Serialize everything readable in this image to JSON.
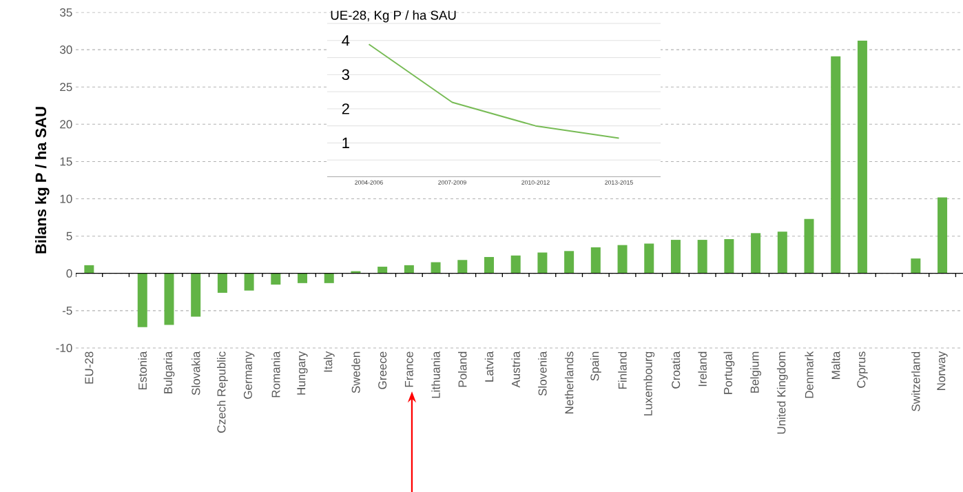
{
  "chart_data": [
    {
      "type": "bar",
      "ylabel": "Bilans kg P / ha SAU",
      "categories": [
        "EU-28",
        null,
        "Estonia",
        "Bulgaria",
        "Slovakia",
        "Czech Republic",
        "Germany",
        "Romania",
        "Hungary",
        "Italy",
        "Sweden",
        "Greece",
        "France",
        "Lithuania",
        "Poland",
        "Latvia",
        "Austria",
        "Slovenia",
        "Netherlands",
        "Spain",
        "Finland",
        "Luxembourg",
        "Croatia",
        "Ireland",
        "Portugal",
        "Belgium",
        "United Kingdom",
        "Denmark",
        "Malta",
        "Cyprus",
        null,
        "Switzerland",
        "Norway"
      ],
      "values": [
        1.1,
        null,
        -7.2,
        -6.9,
        -5.8,
        -2.6,
        -2.3,
        -1.5,
        -1.3,
        -1.3,
        0.3,
        0.9,
        1.1,
        1.5,
        1.8,
        2.2,
        2.4,
        2.8,
        3.0,
        3.5,
        3.8,
        4.0,
        4.5,
        4.5,
        4.6,
        5.4,
        5.6,
        7.3,
        29.1,
        31.2,
        null,
        2.0,
        10.2
      ],
      "color": "#62b446",
      "ylim": [
        -10,
        35
      ],
      "yticks": [
        -10,
        -5,
        0,
        5,
        10,
        15,
        20,
        25,
        30,
        35
      ],
      "grid": "y"
    },
    {
      "type": "line",
      "title": "UE-28, Kg P / ha SAU",
      "categories": [
        "2004-2006",
        "2007-2009",
        "2010-2012",
        "2013-2015"
      ],
      "values": [
        3.89,
        2.19,
        1.5,
        1.14
      ],
      "color": "#77bb55",
      "ylim": [
        0,
        4.5
      ],
      "yticks": [
        {
          "value": 0.5,
          "label": null
        },
        1,
        {
          "value": 1.5,
          "label": null
        },
        2,
        {
          "value": 2.5,
          "label": null
        },
        3,
        {
          "value": 3.5,
          "label": null
        },
        4,
        {
          "value": 4.5,
          "label": null
        }
      ],
      "grid": "y"
    }
  ]
}
